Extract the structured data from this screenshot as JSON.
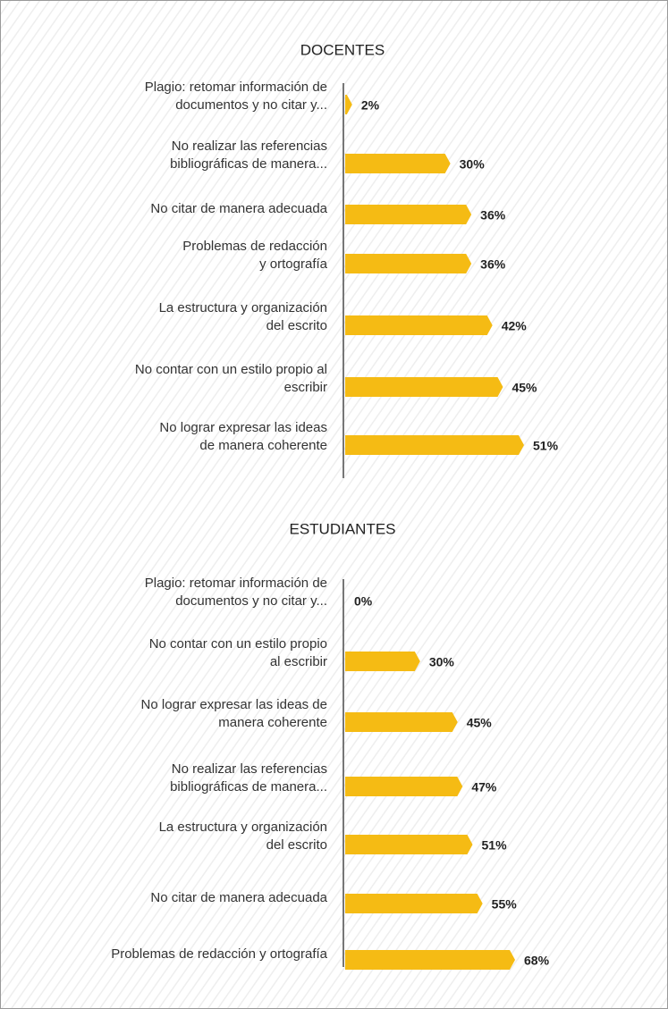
{
  "chart_data": [
    {
      "type": "bar",
      "orientation": "horizontal",
      "title": "DOCENTES",
      "color": "#f5bb14",
      "categories": [
        "Plagio: retomar información de\ndocumentos y no citar y...",
        "No realizar las referencias\nbibliográficas de manera...",
        "No citar de manera adecuada",
        "Problemas de redacción\ny ortografía",
        "La estructura y organización\ndel escrito",
        "No contar con un estilo propio al\nescribir",
        "No lograr expresar las ideas\nde manera coherente"
      ],
      "values": [
        2,
        30,
        36,
        36,
        42,
        45,
        51
      ],
      "value_labels": [
        "2%",
        "30%",
        "36%",
        "36%",
        "42%",
        "45%",
        "51%"
      ]
    },
    {
      "type": "bar",
      "orientation": "horizontal",
      "title": "ESTUDIANTES",
      "color": "#f5bb14",
      "categories": [
        "Plagio: retomar información de\ndocumentos y no citar y...",
        "No contar con un estilo propio\nal escribir",
        "No lograr expresar las ideas de\nmanera coherente",
        "No realizar las referencias\nbibliográficas de manera...",
        "La estructura y organización\ndel escrito",
        "No citar de manera adecuada",
        "Problemas de redacción y ortografía"
      ],
      "values": [
        0,
        30,
        45,
        47,
        51,
        55,
        68
      ],
      "value_labels": [
        "0%",
        "30%",
        "45%",
        "47%",
        "51%",
        "55%",
        "68%"
      ]
    }
  ]
}
